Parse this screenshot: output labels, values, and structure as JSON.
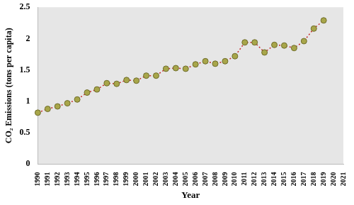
{
  "chart_data": {
    "type": "line",
    "x_label": "Year",
    "y_label": "CO₂ Emissions (tons per capita)",
    "categories": [
      "1990",
      "1991",
      "1992",
      "1993",
      "1994",
      "1995",
      "1996",
      "1997",
      "1998",
      "1999",
      "2000",
      "2001",
      "2002",
      "2003",
      "2004",
      "2005",
      "2006",
      "2007",
      "2008",
      "2009",
      "2010",
      "2011",
      "2012",
      "2013",
      "2014",
      "2015",
      "2016",
      "2017",
      "2018",
      "2019",
      "2020",
      "2021"
    ],
    "values": [
      0.82,
      0.88,
      0.92,
      0.97,
      1.03,
      1.14,
      1.19,
      1.29,
      1.28,
      1.34,
      1.33,
      1.41,
      1.41,
      1.52,
      1.53,
      1.52,
      1.59,
      1.64,
      1.6,
      1.64,
      1.72,
      1.94,
      1.94,
      1.78,
      1.9,
      1.89,
      1.85,
      1.96,
      2.16,
      2.29,
      null,
      null
    ],
    "color": "#c62828",
    "marker": "circle",
    "line_style": "dotted",
    "ylim": [
      0,
      2.5
    ],
    "yticks": [
      0,
      0.5,
      1,
      1.5,
      2,
      2.5
    ],
    "grid": false
  }
}
